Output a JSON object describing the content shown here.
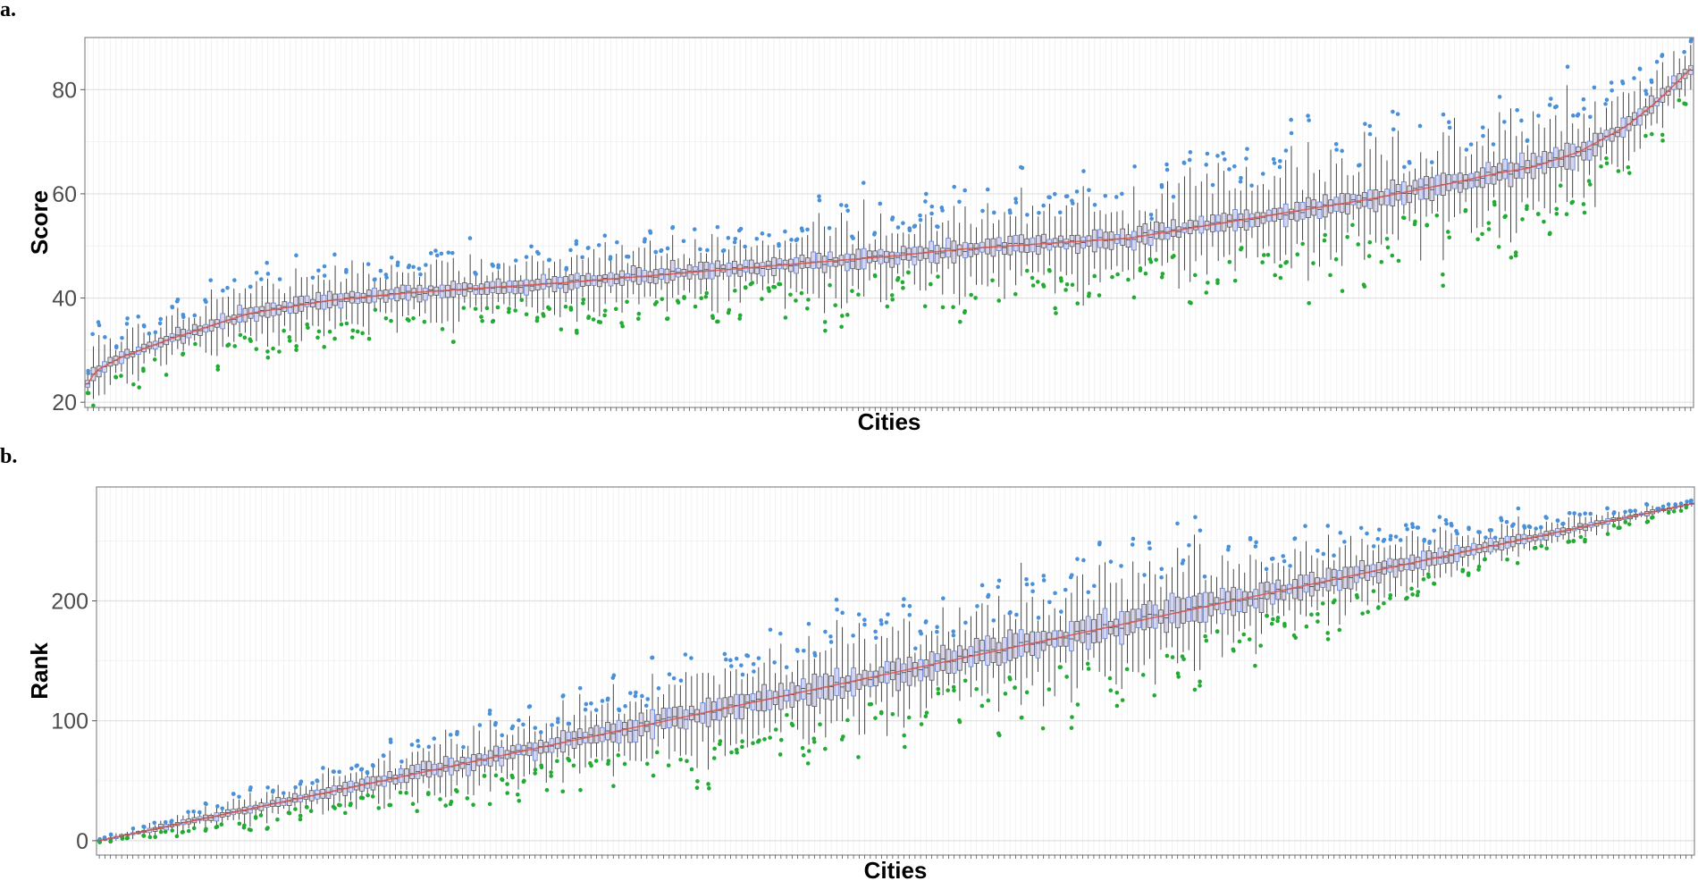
{
  "colors": {
    "box_fill": "#d8d4ec",
    "box_stroke": "#555555",
    "box_accent_stroke": "#5b7fd6",
    "median_line": "#d9534f",
    "outlier_high": "#4a90d9",
    "outlier_low": "#22aa33",
    "whisker": "#333333",
    "grid_major": "#e0e0e0",
    "grid_minor": "#f1f1f1",
    "panel_border": "#888888"
  },
  "chart_data": [
    {
      "panel_label": "a.",
      "type": "box",
      "xlabel": "Cities",
      "ylabel": "Score",
      "ylim": [
        19,
        90
      ],
      "yticks": [
        20,
        40,
        60,
        80
      ],
      "yticks_labels": [
        "20",
        "40",
        "60",
        "80"
      ],
      "n_cities": 286,
      "x_tick_labels": "none",
      "grid": true,
      "median_profile": {
        "x_fraction": [
          0,
          0.005,
          0.02,
          0.05,
          0.1,
          0.15,
          0.2,
          0.3,
          0.4,
          0.5,
          0.55,
          0.6,
          0.65,
          0.7,
          0.75,
          0.8,
          0.85,
          0.88,
          0.9,
          0.93,
          0.96,
          0.98,
          1.0
        ],
        "median": [
          23.5,
          26,
          28.5,
          32,
          37,
          39.5,
          41,
          43,
          45.5,
          48,
          49.5,
          50.5,
          51.5,
          54,
          56.5,
          59,
          62,
          64,
          65,
          68,
          73,
          78,
          84
        ]
      },
      "spread_profile": {
        "x_fraction": [
          0,
          0.1,
          0.3,
          0.5,
          0.7,
          0.85,
          0.95,
          1.0
        ],
        "iqr_half": [
          1.0,
          1.1,
          1.2,
          1.4,
          1.6,
          2.0,
          1.6,
          1.0
        ],
        "whisker_half": [
          3.0,
          3.5,
          4.0,
          5.0,
          6.0,
          7.0,
          5.0,
          2.5
        ]
      }
    },
    {
      "panel_label": "b.",
      "type": "box",
      "xlabel": "Cities",
      "ylabel": "Rank",
      "ylim": [
        -12,
        295
      ],
      "yticks": [
        0,
        100,
        200
      ],
      "yticks_labels": [
        "0",
        "100",
        "200"
      ],
      "n_cities": 286,
      "x_tick_labels": "none",
      "grid": true,
      "median_profile": {
        "x_fraction": [
          0,
          1.0
        ],
        "median": [
          0,
          281
        ]
      },
      "spread_profile": {
        "x_fraction": [
          0,
          0.05,
          0.15,
          0.3,
          0.45,
          0.55,
          0.65,
          0.75,
          0.85,
          0.95,
          1.0
        ],
        "iqr_half": [
          0.5,
          2,
          4,
          7,
          9,
          9,
          10,
          8,
          5,
          2,
          0.5
        ],
        "whisker_half": [
          1,
          4,
          9,
          18,
          25,
          26,
          30,
          22,
          12,
          4,
          1
        ]
      }
    }
  ]
}
